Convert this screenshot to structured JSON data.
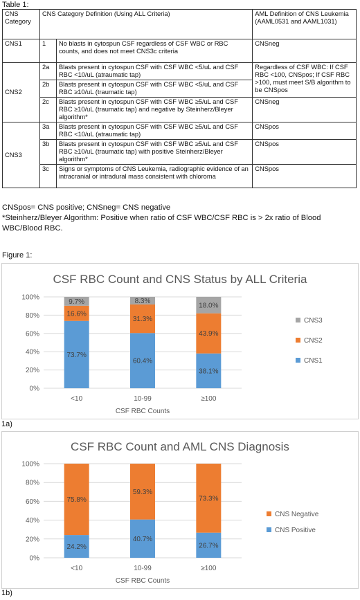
{
  "table": {
    "title": "Table 1:",
    "headers": [
      "CNS Category",
      "CNS Category Definition (Using ALL Criteria)",
      "AML Definition of CNS Leukemia (AAML0531 and AAML1031)"
    ],
    "rows": [
      {
        "cat": "CNS1",
        "sub": "1",
        "def": "No blasts in cytospun CSF regardless of CSF WBC or RBC counts, and does not meet CNS3c criteria",
        "aml": "CNSneg"
      },
      {
        "cat": "CNS2",
        "sub": "2a",
        "def": "Blasts present in cytospun CSF with CSF WBC <5/uL and CSF RBC <10/uL (atraumatic tap)",
        "aml": "Regardless of CSF WBC: If CSF RBC <100, CNSpos; If CSF RBC >100, must meet S/B algorithm to be CNSpos"
      },
      {
        "cat": "",
        "sub": "2b",
        "def": "Blasts present in cytospun CSF with CSF WBC <5/uL and CSF RBC ≥10/uL (traumatic tap)",
        "aml": ""
      },
      {
        "cat": "",
        "sub": "2c",
        "def": "Blasts present in cytospun CSF with CSF WBC ≥5/uL and CSF RBC ≥10/uL (traumatic tap) and negative by Steinherz/Bleyer algorithm*",
        "aml": "CNSneg"
      },
      {
        "cat": "CNS3",
        "sub": "3a",
        "def": "Blasts present in cytospun CSF with CSF WBC ≥5/uL and CSF RBC <10/uL (atraumatic tap)",
        "aml": "CNSpos"
      },
      {
        "cat": "",
        "sub": "3b",
        "def": "Blasts present in cytospun CSF with CSF WBC ≥5/uL and CSF RBC ≥10/uL (traumatic tap) with positive Steinherz/Bleyer algorithm*",
        "aml": "CNSpos"
      },
      {
        "cat": "",
        "sub": "3c",
        "def": "Signs or symptoms of CNS Leukemia, radiographic evidence of an intracranial or intradural mass consistent with chloroma",
        "aml": "CNSpos"
      }
    ]
  },
  "notes": {
    "line1": "CNSpos= CNS positive; CNSneg= CNS negative",
    "line2": "*Steinherz/Bleyer Algorithm: Positive when ratio of CSF WBC/CSF RBC is > 2x ratio of Blood WBC/Blood RBC."
  },
  "figure_title": "Figure 1:",
  "chart_data": [
    {
      "type": "bar",
      "stacked": true,
      "panel_label": "1a)",
      "title": "CSF RBC Count and CNS Status by ALL Criteria",
      "xlabel": "CSF RBC Counts",
      "categories": [
        "<10",
        "10-99",
        "≥100"
      ],
      "ylim": [
        0,
        100
      ],
      "yticks": [
        "0%",
        "20%",
        "40%",
        "60%",
        "80%",
        "100%"
      ],
      "legend_position": "right",
      "series": [
        {
          "name": "CNS1",
          "color": "#5b9bd5",
          "values": [
            73.7,
            60.4,
            38.1
          ],
          "labels": [
            "73.7%",
            "60.4%",
            "38.1%"
          ]
        },
        {
          "name": "CNS2",
          "color": "#ed7d31",
          "values": [
            16.6,
            31.3,
            43.9
          ],
          "labels": [
            "16.6%",
            "31.3%",
            "43.9%"
          ]
        },
        {
          "name": "CNS3",
          "color": "#a5a5a5",
          "values": [
            9.7,
            8.3,
            18.0
          ],
          "labels": [
            "9.7%",
            "8.3%",
            "18.0%"
          ]
        }
      ]
    },
    {
      "type": "bar",
      "stacked": true,
      "panel_label": "1b)",
      "title": "CSF RBC Count and AML CNS Diagnosis",
      "xlabel": "CSF RBC Counts",
      "categories": [
        "<10",
        "10-99",
        "≥100"
      ],
      "ylim": [
        0,
        100
      ],
      "yticks": [
        "0%",
        "20%",
        "40%",
        "60%",
        "80%",
        "100%"
      ],
      "legend_position": "right",
      "series": [
        {
          "name": "CNS Positive",
          "color": "#5b9bd5",
          "values": [
            24.2,
            40.7,
            26.7
          ],
          "labels": [
            "24.2%",
            "40.7%",
            "26.7%"
          ]
        },
        {
          "name": "CNS Negative",
          "color": "#ed7d31",
          "values": [
            75.8,
            59.3,
            73.3
          ],
          "labels": [
            "75.8%",
            "59.3%",
            "73.3%"
          ]
        }
      ]
    }
  ]
}
